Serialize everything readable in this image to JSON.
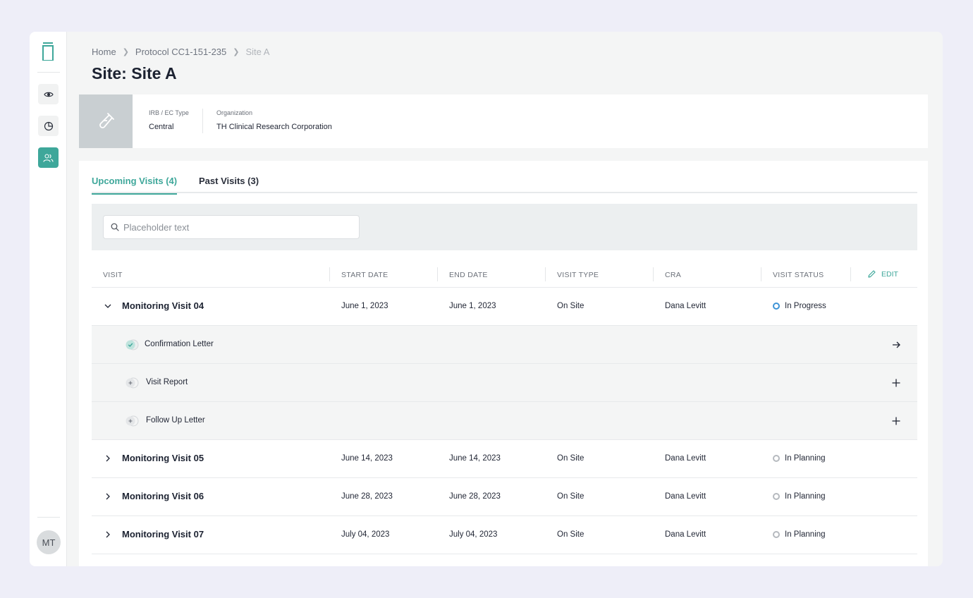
{
  "breadcrumb": {
    "home": "Home",
    "protocol": "Protocol CC1-151-235",
    "site": "Site A"
  },
  "page": {
    "title": "Site: Site A"
  },
  "site_info": {
    "irb_label": "IRB / EC Type",
    "irb_value": "Central",
    "org_label": "Organization",
    "org_value": "TH Clinical Research Corporation"
  },
  "tabs": {
    "upcoming": "Upcoming Visits (4)",
    "past": "Past Visits (3)"
  },
  "search": {
    "placeholder": "Placeholder text"
  },
  "table": {
    "headers": {
      "visit": "VISIT",
      "start": "START DATE",
      "end": "END DATE",
      "type": "VISIT TYPE",
      "cra": "CRA",
      "status": "VISIT STATUS",
      "edit": "EDIT"
    },
    "visits": [
      {
        "name": "Monitoring Visit 04",
        "start": "June 1, 2023",
        "end": "June 1, 2023",
        "type": "On Site",
        "cra": "Dana Levitt",
        "status": "In Progress",
        "expanded": true
      },
      {
        "name": "Monitoring Visit 05",
        "start": "June 14, 2023",
        "end": "June 14, 2023",
        "type": "On Site",
        "cra": "Dana Levitt",
        "status": "In Planning",
        "expanded": false
      },
      {
        "name": "Monitoring Visit 06",
        "start": "June 28, 2023",
        "end": "June 28, 2023",
        "type": "On Site",
        "cra": "Dana Levitt",
        "status": "In Planning",
        "expanded": false
      },
      {
        "name": "Monitoring Visit 07",
        "start": "July 04, 2023",
        "end": "July 04, 2023",
        "type": "On Site",
        "cra": "Dana Levitt",
        "status": "In Planning",
        "expanded": false
      }
    ],
    "documents": [
      {
        "label": "Confirmation Letter",
        "state": "complete",
        "action": "arrow-right-icon"
      },
      {
        "label": "Visit Report",
        "state": "add",
        "action": "plus-icon"
      },
      {
        "label": "Follow Up Letter",
        "state": "add",
        "action": "plus-icon"
      }
    ]
  },
  "user": {
    "initials": "MT"
  },
  "colors": {
    "accent": "#3ea79a",
    "in_progress": "#3d93d6",
    "in_planning": "#b6babf"
  }
}
